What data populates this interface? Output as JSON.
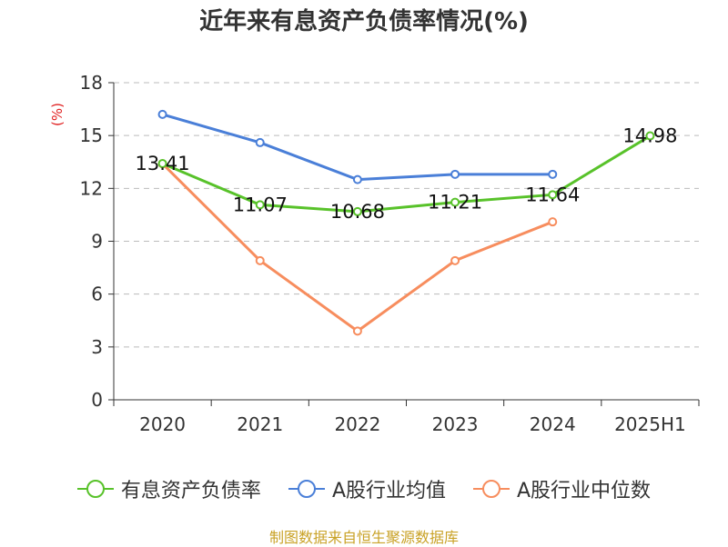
{
  "title": "近年来有息资产负债率情况(%)",
  "source": "制图数据来自恒生聚源数据库",
  "chart_data": {
    "type": "line",
    "title": "近年来有息资产负债率情况(%)",
    "ylabel": "(%)",
    "xlabel": "",
    "categories": [
      "2020",
      "2021",
      "2022",
      "2023",
      "2024",
      "2025H1"
    ],
    "yticks": [
      "0",
      "3",
      "6",
      "9",
      "12",
      "15",
      "18"
    ],
    "ylim": [
      0,
      18
    ],
    "grid": true,
    "legend_position": "bottom",
    "series": [
      {
        "name": "有息资产负债率",
        "color": "#58c22a",
        "values": [
          13.41,
          11.07,
          10.68,
          11.21,
          11.64,
          14.98
        ],
        "labels": [
          "13.41",
          "11.07",
          "10.68",
          "11.21",
          "11.64",
          "14.98"
        ]
      },
      {
        "name": "A股行业均值",
        "color": "#4a7fd8",
        "values": [
          16.2,
          14.6,
          12.5,
          12.8,
          12.8,
          null
        ]
      },
      {
        "name": "A股行业中位数",
        "color": "#f78d5e",
        "values": [
          13.4,
          7.9,
          3.9,
          7.9,
          10.1,
          null
        ]
      }
    ]
  }
}
